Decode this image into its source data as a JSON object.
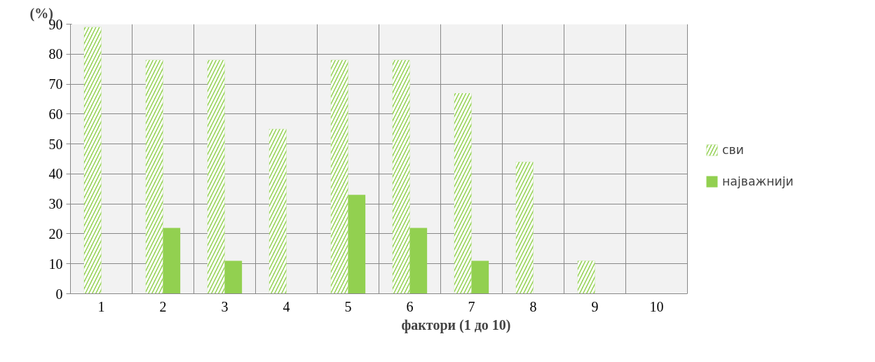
{
  "chart_data": {
    "type": "bar",
    "xlabel": "фактори (1 до 10)",
    "ylabel": "(%)",
    "categories": [
      "1",
      "2",
      "3",
      "4",
      "5",
      "6",
      "7",
      "8",
      "9",
      "10"
    ],
    "series": [
      {
        "name": "сви",
        "color": "#92d050",
        "values": [
          89,
          78,
          78,
          55,
          78,
          78,
          67,
          44,
          11,
          0
        ]
      },
      {
        "name": "најважнији",
        "color": "#92d050",
        "values": [
          0,
          22,
          11,
          0,
          33,
          22,
          11,
          0,
          0,
          0
        ]
      }
    ],
    "ylim": [
      0,
      90
    ],
    "yticks": [
      0,
      10,
      20,
      30,
      40,
      50,
      60,
      70,
      80,
      90
    ],
    "grid": true,
    "legend": "right"
  }
}
